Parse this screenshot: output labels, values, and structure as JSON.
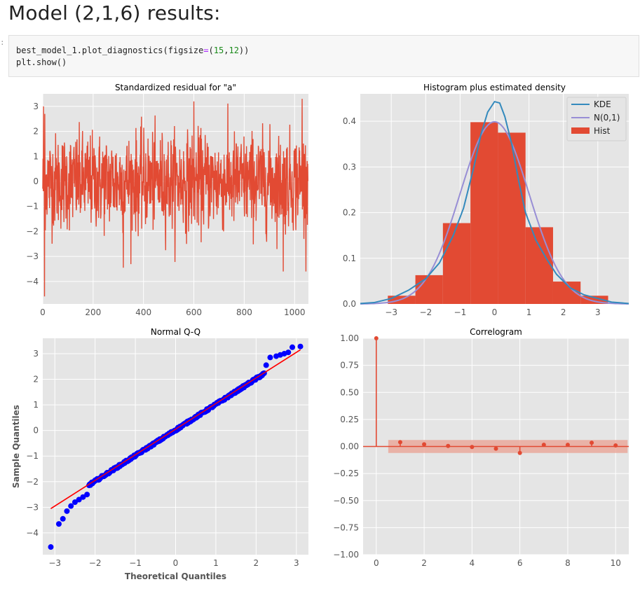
{
  "notebook": {
    "heading": "Model (2,1,6) results:",
    "prompt_mark": ":",
    "code": {
      "line1_prefix": "best_model_1.plot_diagnostics(figsize",
      "line1_eq": "=",
      "line1_open": "(",
      "line1_n1": "15",
      "line1_comma": ",",
      "line1_n2": "12",
      "line1_close": "))",
      "line2": "plt.show()"
    }
  },
  "colors": {
    "panel_bg": "#e5e5e5",
    "grid": "#ffffff",
    "residual": "#e24a33",
    "hist": "#e24a33",
    "kde": "#348abd",
    "normal": "#988ed5",
    "qq_points": "#0000ff",
    "qq_line": "#ff0000",
    "band": "#e9a092"
  },
  "chart_data": [
    {
      "type": "line",
      "title": "Standardized residual for \"a\"",
      "xlim": [
        0,
        1055
      ],
      "ylim": [
        -4.9,
        3.5
      ],
      "x_ticks": [
        0,
        200,
        400,
        600,
        800,
        1000
      ],
      "x_tick_labels": [
        "0",
        "200",
        "400",
        "600",
        "800",
        "1000"
      ],
      "y_ticks": [
        3,
        2,
        1,
        0,
        -1,
        -2,
        -3,
        -4
      ],
      "y_tick_labels": [
        "3",
        "2",
        "1",
        "0",
        "−1",
        "−2",
        "−3",
        "−4"
      ],
      "n_obs": 1055,
      "series_summary": {
        "min": -4.6,
        "max": 3.3,
        "mean": 0.0,
        "std": 1.0
      },
      "grid": true
    },
    {
      "type": "bar",
      "title": "Histogram plus estimated density",
      "xlim": [
        -3.9,
        3.9
      ],
      "ylim": [
        0,
        0.46
      ],
      "x_ticks": [
        -3,
        -2,
        -1,
        0,
        1,
        2,
        3
      ],
      "x_tick_labels": [
        "−3",
        "−2",
        "−1",
        "0",
        "1",
        "2",
        "3"
      ],
      "y_ticks": [
        0.0,
        0.1,
        0.2,
        0.3,
        0.4
      ],
      "y_tick_labels": [
        "0.0",
        "0.1",
        "0.2",
        "0.3",
        "0.4"
      ],
      "hist_bins": [
        {
          "left": -3.1,
          "right": -2.3,
          "value": 0.018
        },
        {
          "left": -2.3,
          "right": -1.5,
          "value": 0.063
        },
        {
          "left": -1.5,
          "right": -0.7,
          "value": 0.177
        },
        {
          "left": -0.7,
          "right": 0.1,
          "value": 0.398
        },
        {
          "left": 0.1,
          "right": 0.9,
          "value": 0.375
        },
        {
          "left": 0.9,
          "right": 1.7,
          "value": 0.168
        },
        {
          "left": 1.7,
          "right": 2.5,
          "value": 0.049
        },
        {
          "left": 2.5,
          "right": 3.3,
          "value": 0.018
        }
      ],
      "kde": {
        "x": [
          -3.9,
          -3.5,
          -3.0,
          -2.5,
          -2.0,
          -1.6,
          -1.2,
          -0.9,
          -0.6,
          -0.4,
          -0.2,
          0.0,
          0.15,
          0.3,
          0.5,
          0.7,
          0.9,
          1.2,
          1.5,
          1.8,
          2.2,
          2.6,
          3.0,
          3.4,
          3.9
        ],
        "y": [
          0.001,
          0.003,
          0.012,
          0.03,
          0.055,
          0.09,
          0.15,
          0.21,
          0.3,
          0.37,
          0.42,
          0.443,
          0.44,
          0.41,
          0.35,
          0.27,
          0.2,
          0.14,
          0.1,
          0.065,
          0.035,
          0.02,
          0.012,
          0.004,
          0.001
        ]
      },
      "normal_curve": {
        "label": "N(0,1)",
        "mean": 0,
        "std": 1
      },
      "legend": {
        "position": "top-right",
        "entries": [
          "KDE",
          "N(0,1)",
          "Hist"
        ]
      },
      "grid": true
    },
    {
      "type": "scatter",
      "title": "Normal Q-Q",
      "xlabel": "Theoretical Quantiles",
      "ylabel": "Sample Quantiles",
      "xlim": [
        -3.3,
        3.3
      ],
      "ylim": [
        -4.85,
        3.6
      ],
      "x_ticks": [
        -3,
        -2,
        -1,
        0,
        1,
        2,
        3
      ],
      "x_tick_labels": [
        "−3",
        "−2",
        "−1",
        "0",
        "1",
        "2",
        "3"
      ],
      "y_ticks": [
        3,
        2,
        1,
        0,
        -1,
        -2,
        -3,
        -4
      ],
      "y_tick_labels": [
        "3",
        "2",
        "1",
        "0",
        "−1",
        "−2",
        "−3",
        "−4"
      ],
      "reference_line": {
        "x": [
          -3.1,
          3.1
        ],
        "y": [
          -3.05,
          3.15
        ]
      },
      "tail_points": {
        "x": [
          -3.1,
          -2.9,
          -2.8,
          -2.7,
          -2.6,
          -2.5,
          -2.4,
          -2.3,
          -2.2,
          2.25,
          2.35,
          2.5,
          2.6,
          2.7,
          2.8,
          2.9,
          3.1
        ],
        "y": [
          -4.55,
          -3.65,
          -3.45,
          -3.15,
          -2.95,
          -2.8,
          -2.7,
          -2.6,
          -2.5,
          2.55,
          2.85,
          2.9,
          2.95,
          3.0,
          3.05,
          3.25,
          3.28
        ]
      },
      "body_range": {
        "x_from": -2.15,
        "x_to": 2.2,
        "slope": 1.0,
        "intercept": 0.02
      },
      "grid": true
    },
    {
      "type": "bar",
      "title": "Correlogram",
      "xlim": [
        -0.55,
        10.55
      ],
      "ylim": [
        -1.0,
        1.0
      ],
      "x_ticks": [
        0,
        2,
        4,
        6,
        8,
        10
      ],
      "x_tick_labels": [
        "0",
        "2",
        "4",
        "6",
        "8",
        "10"
      ],
      "y_ticks": [
        1.0,
        0.75,
        0.5,
        0.25,
        0.0,
        -0.25,
        -0.5,
        -0.75,
        -1.0
      ],
      "y_tick_labels": [
        "1.00",
        "0.75",
        "0.50",
        "0.25",
        "0.00",
        "−0.25",
        "−0.50",
        "−0.75",
        "−1.00"
      ],
      "lags": [
        0,
        1,
        2,
        3,
        4,
        5,
        6,
        7,
        8,
        9,
        10
      ],
      "acf": [
        1.0,
        0.04,
        0.02,
        0.005,
        -0.005,
        -0.02,
        -0.06,
        0.015,
        0.015,
        0.035,
        0.01
      ],
      "confidence_band": [
        -0.06,
        0.06
      ],
      "grid": true
    }
  ]
}
